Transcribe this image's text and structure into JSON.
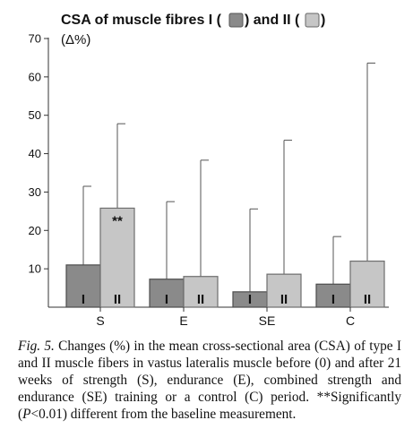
{
  "chart_data": {
    "type": "bar",
    "title": "CSA of muscle fibres I (",
    "title_mid": ") and II (",
    "title_end": ")",
    "ylabel": "(Δ%)",
    "ylim": [
      0,
      70
    ],
    "yticks": [
      10,
      20,
      30,
      40,
      50,
      60,
      70
    ],
    "categories": [
      "S",
      "E",
      "SE",
      "C"
    ],
    "series": [
      {
        "name": "I",
        "color": "#8a8a8a",
        "values": [
          11.0,
          7.3,
          4.0,
          6.0
        ],
        "error": [
          31.5,
          27.5,
          25.6,
          18.4
        ]
      },
      {
        "name": "II",
        "color": "#c6c6c6",
        "values": [
          25.8,
          8.0,
          8.6,
          12.0
        ],
        "error": [
          47.8,
          38.3,
          43.5,
          63.6
        ]
      }
    ],
    "annotations": [
      {
        "category": "S",
        "series": "II",
        "text": "**"
      }
    ],
    "legend": "in title",
    "grid": false
  },
  "caption": {
    "fig": "Fig. 5.",
    "text_1": " Changes (%) in the mean cross-sectional area (CSA) of type I and II muscle fibers in vastus lateralis muscle before (0) and after 21 weeks of strength (S), endurance (E), combined strength and endurance (SE) training or a control (C) period. **Significantly (",
    "p": "P",
    "text_2": "<0.01) different from the baseline measurement."
  }
}
